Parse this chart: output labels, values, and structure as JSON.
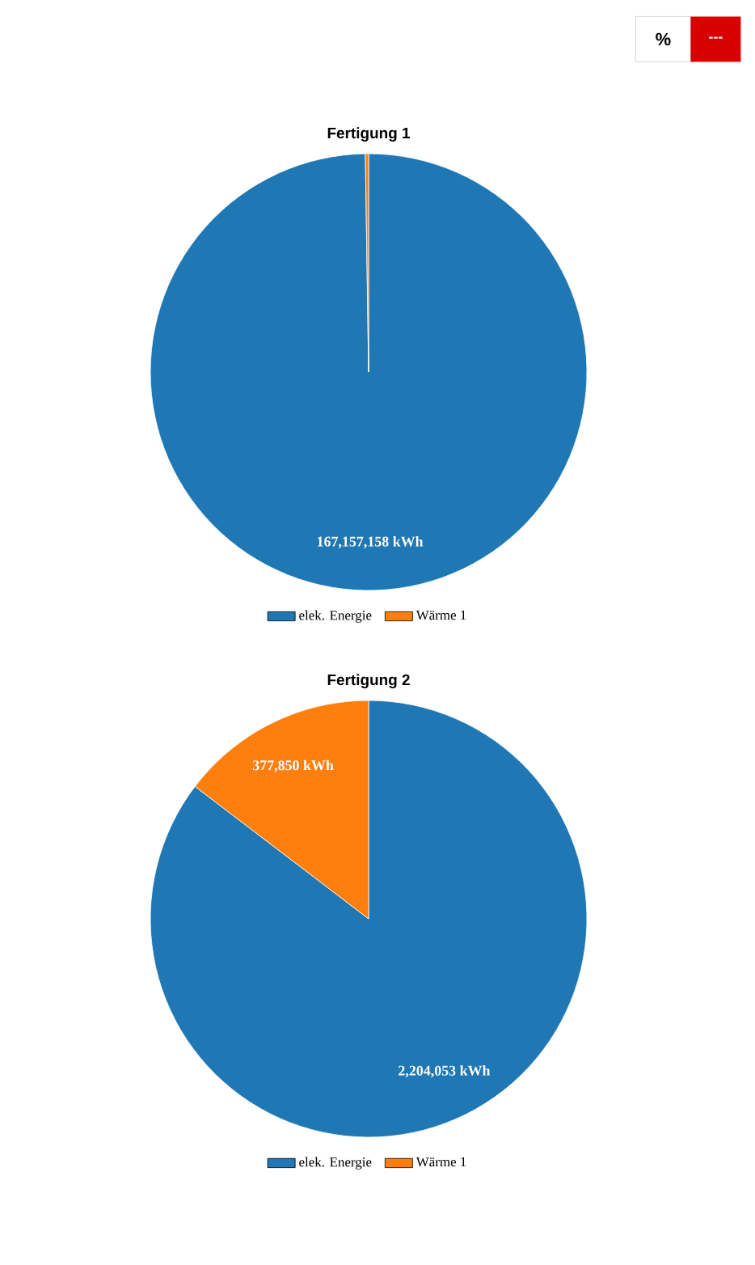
{
  "chart_data": [
    {
      "type": "pie",
      "title": "Fertigung 1",
      "categories": [
        "elek. Energie",
        "Wärme 1"
      ],
      "values": [
        167157158,
        400000
      ],
      "colors": [
        "#1f77b4",
        "#ff7f0e"
      ],
      "value_labels": [
        "167,157,158 kWh",
        null
      ],
      "legend": "bottom",
      "annotations": [
        "%",
        "---"
      ]
    },
    {
      "type": "pie",
      "title": "Fertigung 2",
      "categories": [
        "elek. Energie",
        "Wärme 1"
      ],
      "values": [
        2204053,
        377850
      ],
      "colors": [
        "#1f77b4",
        "#ff7f0e"
      ],
      "value_labels": [
        "2,204,053 kWh",
        "377,850 kWh"
      ],
      "legend": "bottom"
    }
  ]
}
